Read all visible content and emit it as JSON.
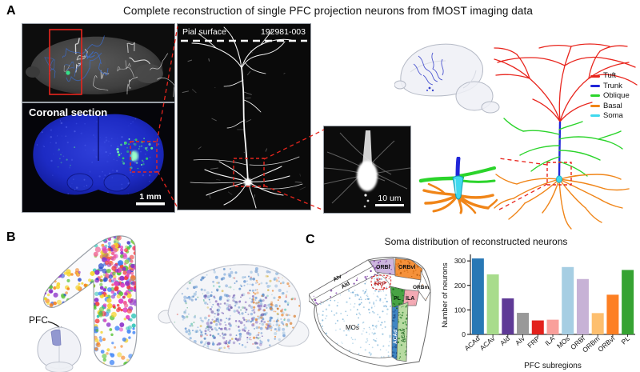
{
  "figure": {
    "title": "Complete reconstruction of single PFC projection neurons from fMOST imaging data",
    "panels": {
      "a": "A",
      "b": "B",
      "c": "C"
    }
  },
  "panel_a": {
    "coronal_label": "Coronal section",
    "coronal_scale_bar": "1 mm",
    "pial_surface_label": "Pial surface",
    "neuron_id": "192981-003",
    "soma_scale_bar": "10 um",
    "dendrite_legend": [
      {
        "label": "Tuft",
        "color": "#e8251d"
      },
      {
        "label": "Trunk",
        "color": "#2126d8"
      },
      {
        "label": "Oblique",
        "color": "#2bd42b"
      },
      {
        "label": "Basal",
        "color": "#f08518"
      },
      {
        "label": "Soma",
        "color": "#3fd9ee"
      }
    ]
  },
  "panel_b": {
    "pfc_label": "PFC"
  },
  "panel_c": {
    "title": "Soma distribution of reconstructed neurons",
    "map_labels": [
      "AIv",
      "AId",
      "ORBl",
      "ORBvl",
      "FRP",
      "ORBm",
      "PL",
      "ILA",
      "MOs",
      "ACAd",
      "ACAv"
    ]
  },
  "chart_data": {
    "type": "bar",
    "title": "Soma distribution of reconstructed neurons",
    "categories": [
      "ACAd",
      "ACAv",
      "AId",
      "AIv",
      "FRP",
      "ILA",
      "MOs",
      "ORBl",
      "ORBm",
      "ORBvl",
      "PL"
    ],
    "values": [
      310,
      245,
      147,
      88,
      57,
      60,
      275,
      226,
      87,
      162,
      263
    ],
    "colors": [
      "#2878b5",
      "#a8dc8c",
      "#5f3a96",
      "#999999",
      "#e3211c",
      "#f99f9b",
      "#a6cee3",
      "#c7b2d6",
      "#fdbf6f",
      "#fd7f23",
      "#36a332"
    ],
    "xlabel": "PFC subregions",
    "ylabel": "Number of neurons",
    "ylim": [
      0,
      320
    ],
    "yticks": [
      0,
      100,
      200,
      300
    ],
    "grid": false,
    "legend": "none"
  }
}
